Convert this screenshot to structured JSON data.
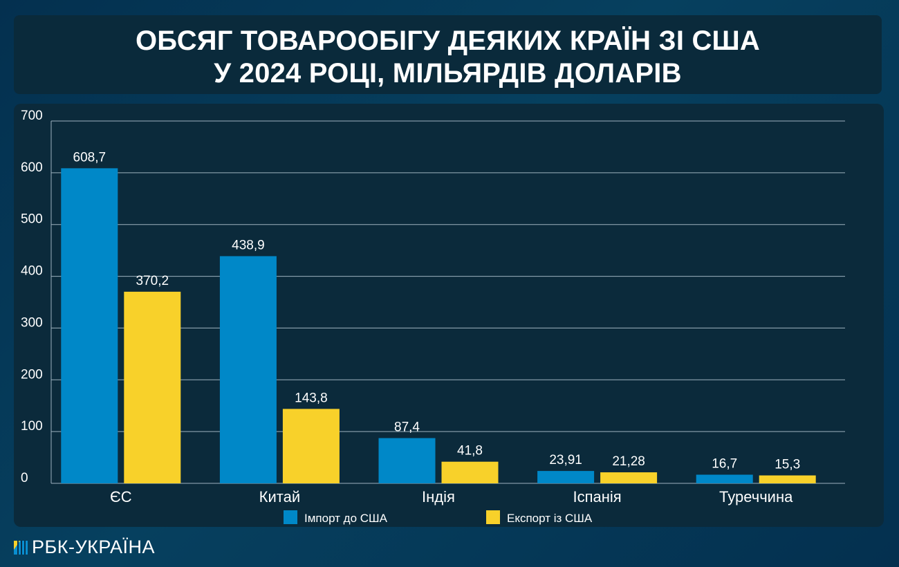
{
  "title_lines": [
    "ОБСЯГ ТОВАРООБІГУ ДЕЯКИХ КРАЇН ЗІ США",
    "У 2024 РОЦІ, МІЛЬЯРДІВ ДОЛАРІВ"
  ],
  "brand": "РБК-УКРАЇНА",
  "chart_data": {
    "type": "bar",
    "title": "ОБСЯГ ТОВАРООБІГУ ДЕЯКИХ КРАЇН ЗІ США У 2024 РОЦІ, МІЛЬЯРДІВ ДОЛАРІВ",
    "categories": [
      "ЄС",
      "Китай",
      "Індія",
      "Іспанія",
      "Туреччина"
    ],
    "series": [
      {
        "name": "Імпорт до США",
        "color": "#0088c8",
        "values": [
          608.7,
          438.9,
          87.4,
          23.91,
          16.7
        ],
        "labels": [
          "608,7",
          "438,9",
          "87,4",
          "23,91",
          "16,7"
        ]
      },
      {
        "name": "Експорт із США",
        "color": "#f8d12a",
        "values": [
          370.2,
          143.8,
          41.8,
          21.28,
          15.3
        ],
        "labels": [
          "370,2",
          "143,8",
          "41,8",
          "21,28",
          "15,3"
        ]
      }
    ],
    "ylim": [
      0,
      700
    ],
    "yticks": [
      "0",
      "100",
      "200",
      "300",
      "400",
      "500",
      "600",
      "700"
    ],
    "grid": true,
    "legend": "bottom"
  }
}
